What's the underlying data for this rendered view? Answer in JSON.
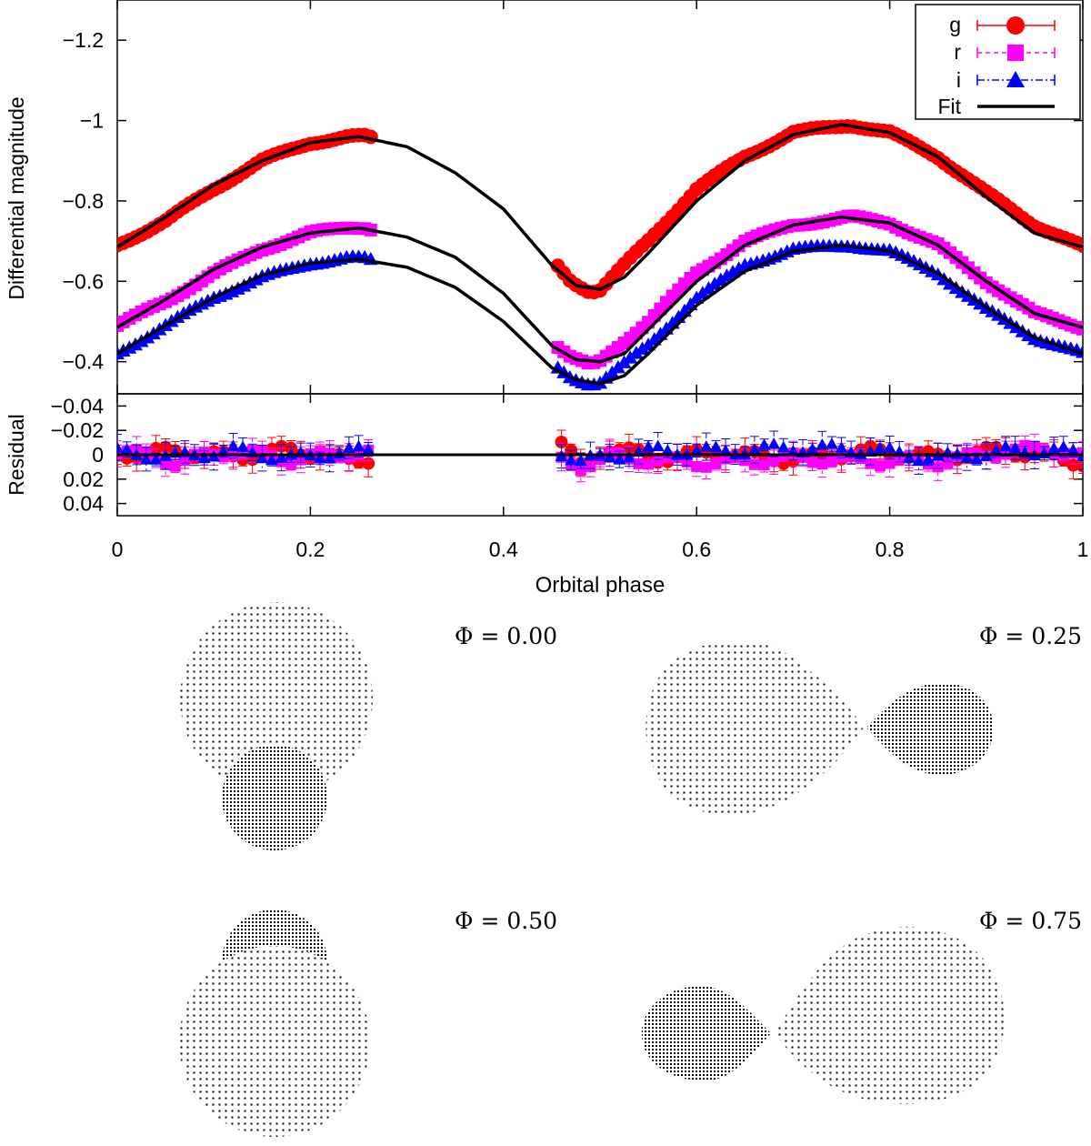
{
  "chart_data": [
    {
      "type": "scatter",
      "panel": "light-curve",
      "title": "",
      "xlabel": "",
      "ylabel": "Differential magnitude",
      "xlim": [
        0,
        1
      ],
      "ylim": [
        -1.3,
        -0.32
      ],
      "y_inverted": true,
      "x_ticks": [
        0,
        0.2,
        0.4,
        0.6,
        0.8,
        1
      ],
      "y_ticks": [
        -1.2,
        -1,
        -0.8,
        -0.6,
        -0.4
      ],
      "y_tick_labels": [
        "−1.2",
        "−1",
        "−0.8",
        "−0.6",
        "−0.4"
      ],
      "grid": false,
      "legend_position": "top-right",
      "legend": [
        {
          "label": "g",
          "marker": "circle",
          "color": "#ff0000",
          "line": "solid"
        },
        {
          "label": "r",
          "marker": "square",
          "color": "#ff00ff",
          "line": "dashed"
        },
        {
          "label": "i",
          "marker": "triangle",
          "color": "#0000ff",
          "line": "dash-dot"
        },
        {
          "label": "Fit",
          "marker": "none",
          "color": "#000000",
          "line": "solid"
        }
      ],
      "coverage_gaps": [
        [
          0.265,
          0.455
        ]
      ],
      "series": [
        {
          "name": "g",
          "color": "#ff0000",
          "marker": "circle",
          "x": [
            0.0,
            0.05,
            0.1,
            0.15,
            0.2,
            0.24,
            0.26,
            0.455,
            0.47,
            0.49,
            0.5,
            0.55,
            0.6,
            0.65,
            0.7,
            0.76,
            0.8,
            0.85,
            0.9,
            0.95,
            1.0
          ],
          "y": [
            -0.69,
            -0.75,
            -0.83,
            -0.9,
            -0.945,
            -0.96,
            -0.96,
            -0.64,
            -0.6,
            -0.575,
            -0.58,
            -0.7,
            -0.83,
            -0.91,
            -0.97,
            -0.99,
            -0.97,
            -0.91,
            -0.82,
            -0.74,
            -0.685
          ]
        },
        {
          "name": "r",
          "color": "#ff00ff",
          "marker": "square",
          "x": [
            0.0,
            0.05,
            0.1,
            0.15,
            0.2,
            0.24,
            0.26,
            0.455,
            0.47,
            0.49,
            0.5,
            0.55,
            0.6,
            0.65,
            0.7,
            0.76,
            0.8,
            0.85,
            0.9,
            0.95,
            1.0
          ],
          "y": [
            -0.49,
            -0.55,
            -0.62,
            -0.68,
            -0.72,
            -0.735,
            -0.735,
            -0.44,
            -0.41,
            -0.39,
            -0.4,
            -0.5,
            -0.62,
            -0.7,
            -0.74,
            -0.76,
            -0.745,
            -0.69,
            -0.6,
            -0.52,
            -0.485
          ]
        },
        {
          "name": "i",
          "color": "#0000ff",
          "marker": "triangle",
          "x": [
            0.0,
            0.05,
            0.1,
            0.15,
            0.2,
            0.24,
            0.26,
            0.455,
            0.47,
            0.49,
            0.5,
            0.55,
            0.6,
            0.65,
            0.7,
            0.76,
            0.8,
            0.85,
            0.9,
            0.95,
            1.0
          ],
          "y": [
            -0.42,
            -0.49,
            -0.56,
            -0.61,
            -0.645,
            -0.66,
            -0.655,
            -0.385,
            -0.36,
            -0.345,
            -0.35,
            -0.44,
            -0.56,
            -0.64,
            -0.68,
            -0.69,
            -0.675,
            -0.62,
            -0.53,
            -0.46,
            -0.42
          ]
        },
        {
          "name": "Fit g",
          "color": "#000000",
          "marker": "none",
          "x": [
            0.0,
            0.05,
            0.1,
            0.15,
            0.2,
            0.25,
            0.3,
            0.35,
            0.4,
            0.45,
            0.475,
            0.5,
            0.525,
            0.55,
            0.6,
            0.65,
            0.7,
            0.75,
            0.8,
            0.85,
            0.9,
            0.95,
            1.0
          ],
          "y": [
            -0.685,
            -0.76,
            -0.84,
            -0.9,
            -0.945,
            -0.96,
            -0.935,
            -0.87,
            -0.78,
            -0.64,
            -0.59,
            -0.58,
            -0.61,
            -0.67,
            -0.8,
            -0.9,
            -0.965,
            -0.99,
            -0.97,
            -0.91,
            -0.81,
            -0.72,
            -0.685
          ]
        },
        {
          "name": "Fit r",
          "color": "#000000",
          "marker": "none",
          "x": [
            0.0,
            0.05,
            0.1,
            0.15,
            0.2,
            0.25,
            0.3,
            0.35,
            0.4,
            0.45,
            0.475,
            0.5,
            0.525,
            0.55,
            0.6,
            0.65,
            0.7,
            0.75,
            0.8,
            0.85,
            0.9,
            0.95,
            1.0
          ],
          "y": [
            -0.485,
            -0.555,
            -0.63,
            -0.685,
            -0.72,
            -0.733,
            -0.71,
            -0.66,
            -0.57,
            -0.44,
            -0.405,
            -0.4,
            -0.42,
            -0.48,
            -0.6,
            -0.69,
            -0.74,
            -0.76,
            -0.745,
            -0.69,
            -0.6,
            -0.52,
            -0.485
          ]
        },
        {
          "name": "Fit i",
          "color": "#000000",
          "marker": "none",
          "x": [
            0.0,
            0.05,
            0.1,
            0.15,
            0.2,
            0.25,
            0.3,
            0.35,
            0.4,
            0.45,
            0.475,
            0.5,
            0.525,
            0.55,
            0.6,
            0.65,
            0.7,
            0.75,
            0.8,
            0.85,
            0.9,
            0.95,
            1.0
          ],
          "y": [
            -0.42,
            -0.49,
            -0.56,
            -0.615,
            -0.645,
            -0.655,
            -0.635,
            -0.585,
            -0.5,
            -0.385,
            -0.355,
            -0.345,
            -0.365,
            -0.42,
            -0.54,
            -0.625,
            -0.675,
            -0.69,
            -0.675,
            -0.62,
            -0.535,
            -0.46,
            -0.42
          ]
        }
      ]
    },
    {
      "type": "scatter",
      "panel": "residuals",
      "title": "",
      "xlabel": "Orbital phase",
      "ylabel": "Residual",
      "xlim": [
        0,
        1
      ],
      "ylim": [
        -0.05,
        0.05
      ],
      "y_inverted": true,
      "x_ticks": [
        0,
        0.2,
        0.4,
        0.6,
        0.8,
        1
      ],
      "x_tick_labels": [
        "0",
        "0.2",
        "0.4",
        "0.6",
        "0.8",
        "1"
      ],
      "y_ticks": [
        -0.04,
        -0.02,
        0,
        0.02,
        0.04
      ],
      "y_tick_labels": [
        "−0.04",
        "−0.02",
        "0",
        "0.02",
        "0.04"
      ],
      "reference_line": 0,
      "typical_error": 0.008,
      "series": [
        {
          "name": "g",
          "color": "#ff0000",
          "marker": "circle",
          "x": [
            0.0,
            0.06,
            0.12,
            0.18,
            0.24,
            0.455,
            0.48,
            0.51,
            0.56,
            0.62,
            0.7,
            0.78,
            0.85,
            0.92,
            0.97,
            1.0
          ],
          "y": [
            0.0,
            -0.003,
            0.002,
            -0.004,
            0.005,
            -0.015,
            0.01,
            -0.006,
            0.003,
            -0.002,
            0.004,
            -0.003,
            0.002,
            -0.004,
            0.003,
            0.006
          ]
        },
        {
          "name": "r",
          "color": "#ff00ff",
          "marker": "square",
          "x": [
            0.0,
            0.06,
            0.12,
            0.18,
            0.24,
            0.455,
            0.48,
            0.51,
            0.56,
            0.62,
            0.7,
            0.78,
            0.85,
            0.92,
            0.97,
            1.0
          ],
          "y": [
            -0.004,
            0.006,
            -0.003,
            0.004,
            -0.002,
            0.004,
            0.009,
            0.002,
            0.005,
            0.007,
            0.003,
            0.005,
            0.006,
            -0.003,
            -0.005,
            0.002
          ]
        },
        {
          "name": "i",
          "color": "#0000ff",
          "marker": "triangle",
          "x": [
            0.0,
            0.06,
            0.12,
            0.18,
            0.24,
            0.455,
            0.48,
            0.51,
            0.56,
            0.62,
            0.7,
            0.78,
            0.85,
            0.92,
            0.97,
            1.0
          ],
          "y": [
            -0.002,
            0.002,
            -0.004,
            0.003,
            -0.003,
            -0.005,
            0.006,
            0.001,
            -0.004,
            -0.003,
            -0.006,
            -0.004,
            0.003,
            -0.003,
            -0.004,
            0.0
          ]
        }
      ]
    }
  ],
  "binary_views": [
    {
      "label": "Φ = 0.00",
      "phase": 0.0
    },
    {
      "label": "Φ = 0.25",
      "phase": 0.25
    },
    {
      "label": "Φ = 0.50",
      "phase": 0.5
    },
    {
      "label": "Φ = 0.75",
      "phase": 0.75
    }
  ]
}
